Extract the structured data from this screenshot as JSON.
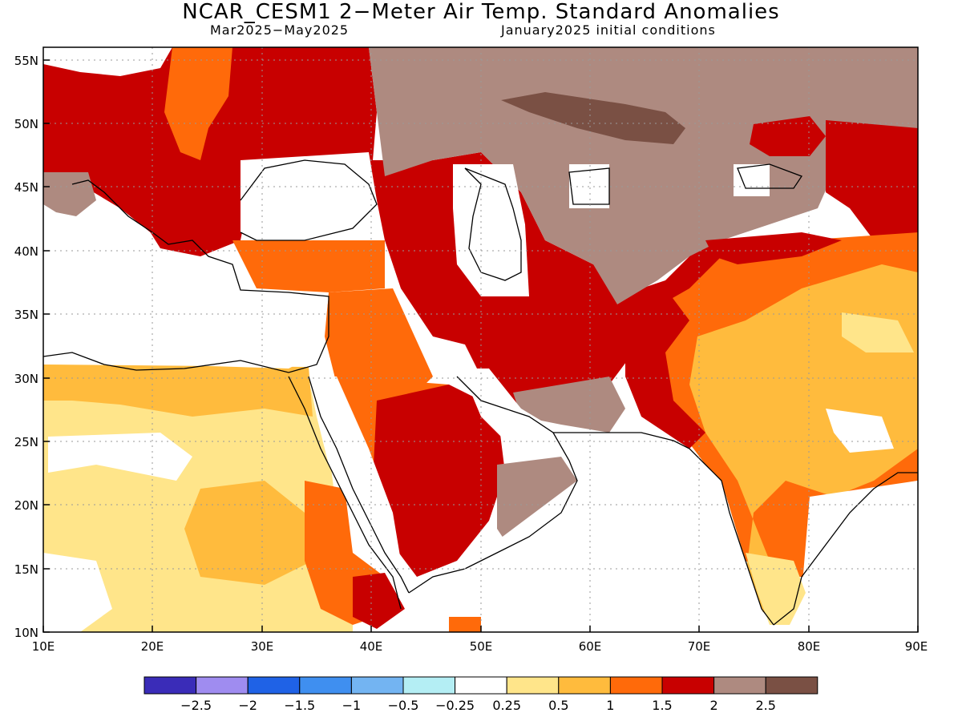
{
  "title": "NCAR_CESM1 2−Meter Air Temp. Standard Anomalies",
  "subtitle_left": "Mar2025−May2025",
  "subtitle_right": "January2025 initial conditions",
  "map": {
    "lon_range": [
      10,
      90
    ],
    "lat_range": [
      10,
      56
    ],
    "x_ticks": [
      "10E",
      "20E",
      "30E",
      "40E",
      "50E",
      "60E",
      "70E",
      "80E",
      "90E"
    ],
    "y_ticks": [
      "10N",
      "15N",
      "20N",
      "25N",
      "30N",
      "35N",
      "40N",
      "45N",
      "50N",
      "55N"
    ],
    "grid": "dotted"
  },
  "colorbar": {
    "colors": [
      "#3a2cb8",
      "#9f8cf0",
      "#1f62e6",
      "#3f8ff0",
      "#73b4f2",
      "#b4eef4",
      "#ffffff",
      "#ffe58a",
      "#ffbb3d",
      "#ff6a0a",
      "#c80000",
      "#ae8a80",
      "#7a5044"
    ],
    "labels": [
      "−2.5",
      "−2",
      "−1.5",
      "−1",
      "−0.5",
      "−0.25",
      "0.25",
      "0.5",
      "1",
      "1.5",
      "2",
      "2.5"
    ]
  }
}
